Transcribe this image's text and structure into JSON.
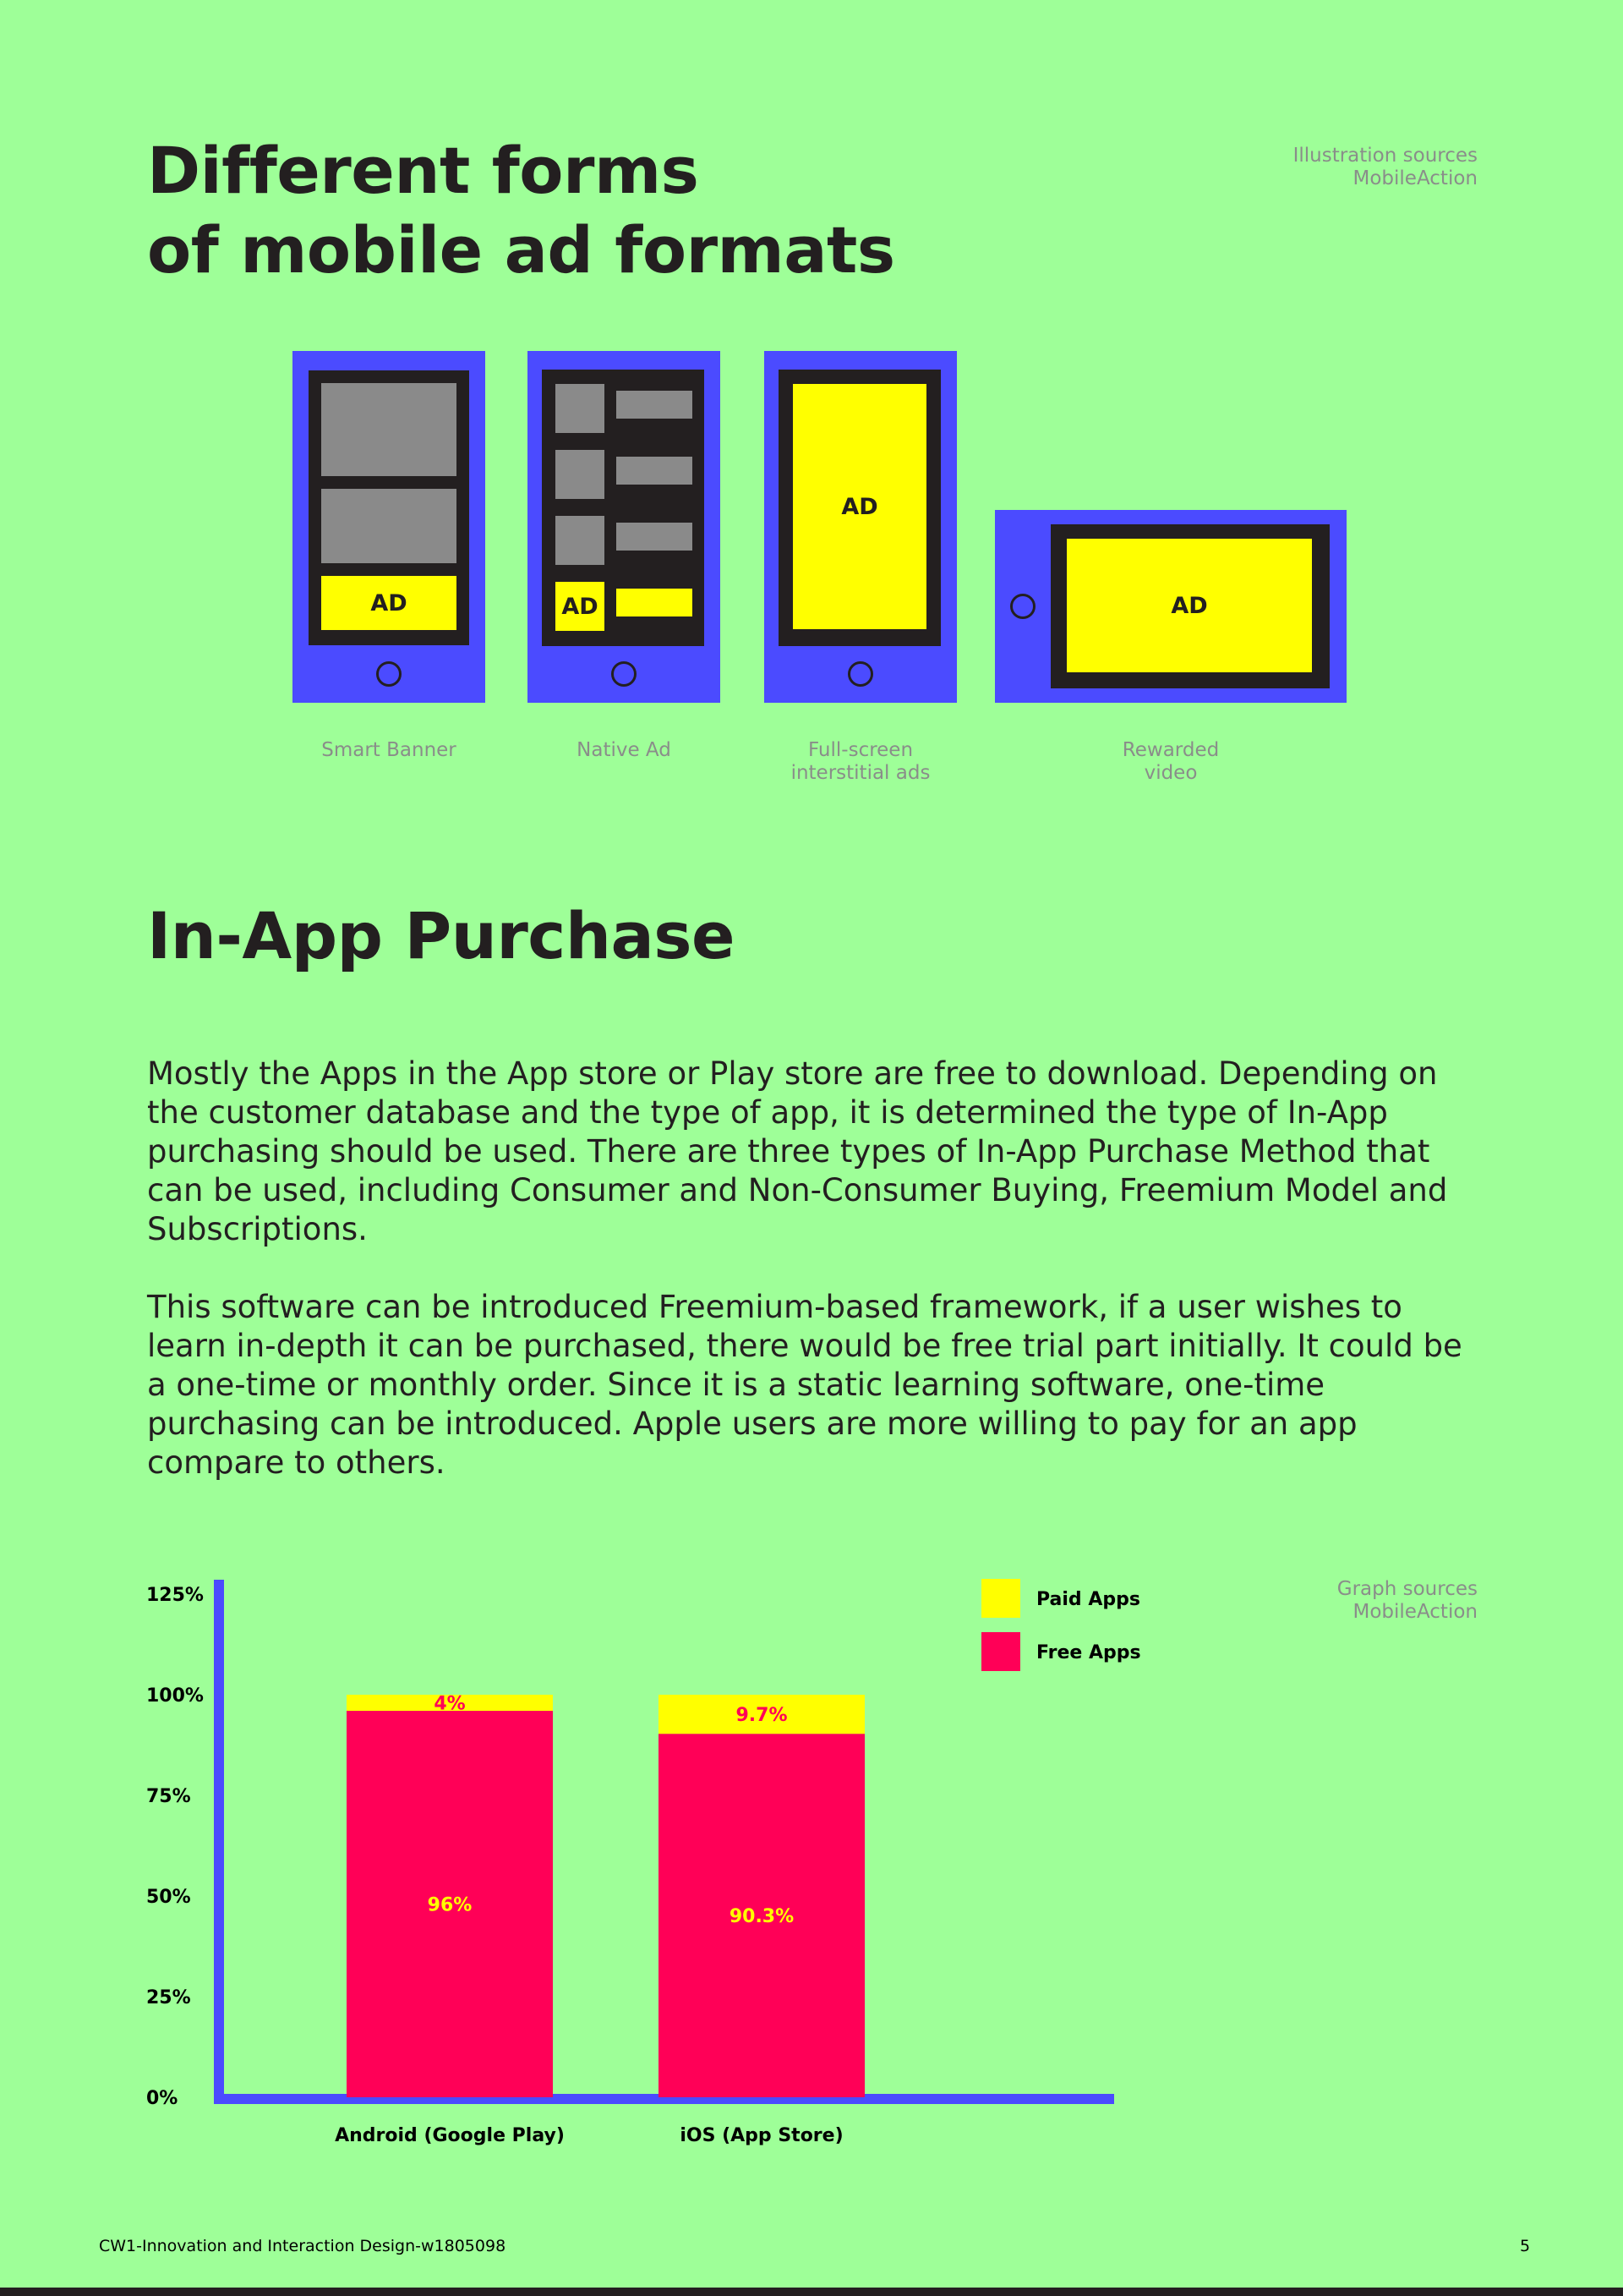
{
  "ad_formats": {
    "title_line1": "Different forms",
    "title_line2": "of mobile ad formats",
    "source_line1": "Illustration sources",
    "source_line2": "MobileAction",
    "ad_label": "AD",
    "captions": {
      "smart_banner": "Smart Banner",
      "native_ad": "Native Ad",
      "fullscreen_line1": "Full-screen",
      "fullscreen_line2": "interstitial ads",
      "rewarded_line1": "Rewarded",
      "rewarded_line2": "video"
    }
  },
  "in_app": {
    "title": "In-App Purchase",
    "paragraph1": "Mostly the Apps in the App store or Play store are free to download. Depending on the customer database and the type of app, it is determined the type of In-App purchasing should be used. There are three types of In-App Purchase Method that can be used, including Consumer and Non-Consumer Buying, Freemium Model and Subscriptions.",
    "paragraph2": "This software can be introduced Freemium-based framework, if a user wishes to learn in-depth it can be purchased, there would be free trial part initially. It could be a one-time or monthly order. Since it is a static learning software, one-time purchasing can be introduced. Apple users are more willing to pay for an app compare to others."
  },
  "graph_source": {
    "line1": "Graph sources",
    "line2": "MobileAction"
  },
  "chart_data": {
    "type": "bar",
    "stacked": true,
    "categories": [
      "Android (Google Play)",
      "iOS (App Store)"
    ],
    "series": [
      {
        "name": "Free Apps",
        "values": [
          96,
          90.3
        ],
        "labels": [
          "96%",
          "90.3%"
        ],
        "color": "#ff0057",
        "label_color": "#ffff00"
      },
      {
        "name": "Paid Apps",
        "values": [
          4,
          9.7
        ],
        "labels": [
          "4%",
          "9.7%"
        ],
        "color": "#ffff00",
        "label_color": "#ff0057"
      }
    ],
    "yticks": [
      "0%",
      "25%",
      "50%",
      "75%",
      "100%",
      "125%"
    ],
    "ylim": [
      0,
      125
    ],
    "legend": "top-right",
    "grid": false,
    "axis_color": "#4b4bff"
  },
  "footer": {
    "left": "CW1-Innovation and Interaction Design-w1805098",
    "page_number": "5"
  }
}
